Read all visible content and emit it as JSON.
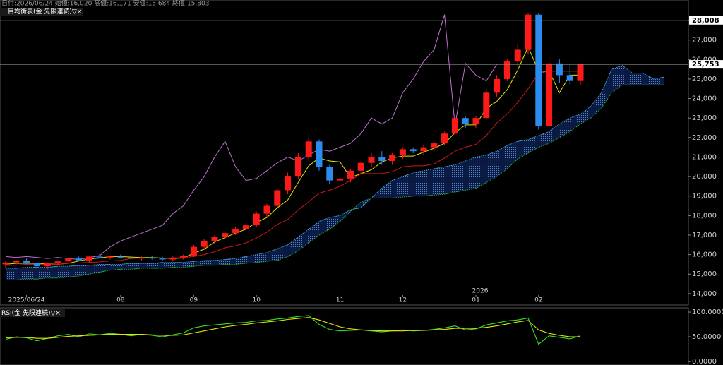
{
  "chart_data": [
    {
      "type": "candlestick",
      "subtitle": "日付:2026/06/24 始値:16,020 高値:16,171 安値:15,684 終値:15,803",
      "title": "一目均衡表(金 先限連続)▽×",
      "annotation": "2026",
      "categories": [
        null,
        null,
        "2025/06/24",
        null,
        null,
        null,
        null,
        null,
        null,
        null,
        null,
        "08",
        null,
        null,
        null,
        null,
        null,
        null,
        "09",
        null,
        null,
        null,
        null,
        null,
        "10",
        null,
        null,
        null,
        null,
        null,
        null,
        null,
        "11",
        null,
        null,
        null,
        null,
        null,
        "12",
        null,
        null,
        null,
        null,
        null,
        null,
        "01",
        null,
        null,
        null,
        null,
        null,
        "02",
        null,
        null,
        null,
        null,
        null,
        null,
        null,
        null,
        null,
        null,
        null,
        null
      ],
      "open": [
        15500,
        15600,
        15700,
        15550,
        15400,
        15550,
        15650,
        15800,
        15700,
        15900,
        15850,
        15900,
        15850,
        15800,
        15850,
        15800,
        15750,
        15850,
        15950,
        16400,
        16700,
        16900,
        17100,
        17300,
        17500,
        18100,
        18500,
        19300,
        20000,
        21000,
        21800,
        20500,
        19800,
        19900,
        20300,
        20700,
        21000,
        20800,
        21100,
        21400,
        21300,
        21500,
        21700,
        22200,
        23000,
        22700,
        23000,
        24300,
        25000,
        25900,
        26500,
        28300,
        22600,
        25800,
        25200,
        24900,
        null,
        null,
        null,
        null,
        null,
        null,
        null,
        null
      ],
      "high": [
        15700,
        15750,
        15800,
        15650,
        15600,
        15700,
        15850,
        15900,
        15950,
        16050,
        15950,
        16000,
        15950,
        15900,
        15950,
        15900,
        15900,
        16000,
        16500,
        16800,
        17000,
        17200,
        17400,
        17600,
        18200,
        18600,
        19400,
        20200,
        21200,
        22000,
        21900,
        20600,
        20100,
        20400,
        20800,
        21200,
        21300,
        21200,
        21500,
        21500,
        21600,
        21800,
        22300,
        23200,
        23100,
        23100,
        24500,
        25200,
        26000,
        26800,
        28400,
        28400,
        26200,
        26000,
        25700,
        25800,
        null,
        null,
        null,
        null,
        null,
        null,
        null,
        null
      ],
      "low": [
        15300,
        15450,
        15500,
        15300,
        15250,
        15450,
        15550,
        15650,
        15600,
        15800,
        15750,
        15800,
        15750,
        15700,
        15750,
        15700,
        15650,
        15750,
        15900,
        16300,
        16550,
        16800,
        17000,
        17100,
        17400,
        17900,
        18400,
        19100,
        19900,
        20800,
        20300,
        19600,
        19500,
        19700,
        20100,
        20500,
        20600,
        20600,
        20900,
        21200,
        21100,
        21300,
        21600,
        22100,
        22500,
        22500,
        22900,
        24100,
        24900,
        25700,
        26300,
        22400,
        22500,
        24800,
        24700,
        24700,
        null,
        null,
        null,
        null,
        null,
        null,
        null,
        null
      ],
      "close": [
        15600,
        15700,
        15550,
        15400,
        15550,
        15650,
        15800,
        15700,
        15900,
        15850,
        15900,
        15850,
        15800,
        15850,
        15800,
        15750,
        15850,
        15950,
        16400,
        16700,
        16900,
        17100,
        17300,
        17500,
        18100,
        18500,
        19300,
        20000,
        21000,
        21800,
        20500,
        19800,
        19900,
        20300,
        20700,
        21000,
        20800,
        21100,
        21400,
        21300,
        21500,
        21700,
        22200,
        23000,
        22700,
        23000,
        24300,
        25000,
        25900,
        26500,
        28300,
        22600,
        25800,
        25200,
        24900,
        25753,
        null,
        null,
        null,
        null,
        null,
        null,
        null,
        null
      ],
      "up_color": "#ff1a1a",
      "down_color": "#2b8cf0",
      "cloud_color": "#1a3470",
      "series": [
        {
          "color": "#e6e600",
          "values": [
            15500,
            15550,
            15550,
            15550,
            15525,
            15500,
            15550,
            15675,
            15775,
            15825,
            15900,
            15900,
            15875,
            15850,
            15850,
            15825,
            15800,
            15825,
            16075,
            16275,
            16650,
            16875,
            17100,
            17300,
            17650,
            17900,
            18400,
            18800,
            19700,
            20550,
            20950,
            20800,
            20750,
            19950,
            20150,
            20350,
            20750,
            20950,
            21050,
            21050,
            21250,
            21450,
            21700,
            22250,
            22650,
            22650,
            23500,
            23850,
            24450,
            25450,
            26650,
            25400,
            25400,
            24300,
            25200,
            25200,
            null,
            null,
            null,
            null,
            null,
            null,
            null,
            null
          ]
        },
        {
          "color": "#c81818",
          "values": [
            15450,
            15450,
            15500,
            15500,
            15500,
            15500,
            15550,
            15575,
            15600,
            15625,
            15675,
            15700,
            15800,
            15825,
            15825,
            15825,
            15825,
            15850,
            15900,
            16000,
            16150,
            16350,
            16450,
            16600,
            16850,
            17150,
            17550,
            17800,
            18300,
            18700,
            19150,
            19300,
            19500,
            19800,
            20150,
            20150,
            20150,
            20250,
            20500,
            20550,
            20550,
            20650,
            20950,
            21300,
            21500,
            21650,
            22100,
            22750,
            23200,
            23800,
            24500,
            25300,
            25400,
            25400,
            25400,
            25400,
            null,
            null,
            null,
            null,
            null,
            null,
            null,
            null
          ]
        },
        {
          "color": "#c070d0",
          "values": [
            15900,
            15850,
            15900,
            15850,
            15800,
            15850,
            15800,
            15750,
            15850,
            15950,
            16400,
            16700,
            16900,
            17100,
            17300,
            17500,
            18100,
            18500,
            19300,
            20000,
            21000,
            21800,
            20500,
            19800,
            19900,
            20300,
            20700,
            21000,
            20800,
            21100,
            21400,
            21300,
            21500,
            21700,
            22200,
            23000,
            22700,
            23000,
            24300,
            25000,
            25900,
            26500,
            28300,
            22600,
            25800,
            25200,
            24900,
            25753,
            null,
            null,
            null,
            null,
            null,
            null,
            null,
            null,
            null,
            null,
            null,
            null,
            null,
            null,
            null,
            null
          ]
        },
        {
          "color": "#3fa6d8",
          "values": [
            15300,
            15300,
            15350,
            15350,
            15350,
            15400,
            15400,
            15450,
            15450,
            15500,
            15500,
            15500,
            15550,
            15550,
            15550,
            15600,
            15600,
            15600,
            15650,
            15700,
            15700,
            15750,
            15800,
            15900,
            16000,
            16100,
            16300,
            16500,
            16900,
            17300,
            17700,
            17900,
            18000,
            18300,
            18400,
            18900,
            19400,
            19800,
            20000,
            20200,
            20300,
            20400,
            20500,
            20600,
            20800,
            21000,
            21100,
            21300,
            21600,
            21800,
            21900,
            22100,
            22300,
            22700,
            23000,
            23200,
            23600,
            24300,
            25500,
            25700,
            25300,
            25300,
            25000,
            25100
          ]
        },
        {
          "color": "#22b044",
          "values": [
            14700,
            14700,
            14750,
            14750,
            14800,
            14800,
            14850,
            14900,
            15000,
            15100,
            15200,
            15250,
            15250,
            15300,
            15300,
            15300,
            15350,
            15350,
            15400,
            15450,
            15450,
            15500,
            15500,
            15550,
            15600,
            15650,
            15700,
            15900,
            16200,
            16600,
            17000,
            17300,
            17700,
            18200,
            18700,
            18900,
            18900,
            18900,
            18950,
            19000,
            19000,
            19050,
            19100,
            19200,
            19300,
            19400,
            19700,
            20000,
            20400,
            20900,
            21200,
            21500,
            21700,
            22000,
            22300,
            22700,
            23000,
            23500,
            24300,
            24700,
            24700,
            24700,
            24700,
            24700
          ]
        }
      ],
      "ylim": [
        13670,
        29050
      ],
      "yticks": [
        {
          "value": 14000,
          "label": "14,000"
        },
        {
          "value": 15000,
          "label": "15,000"
        },
        {
          "value": 16000,
          "label": "16,000"
        },
        {
          "value": 17000,
          "label": "17,000"
        },
        {
          "value": 18000,
          "label": "18,000"
        },
        {
          "value": 19000,
          "label": "19,000"
        },
        {
          "value": 20000,
          "label": "20,000"
        },
        {
          "value": 21000,
          "label": "21,000"
        },
        {
          "value": 22000,
          "label": "22,000"
        },
        {
          "value": 23000,
          "label": "23,000"
        },
        {
          "value": 24000,
          "label": "24,000"
        },
        {
          "value": 25000,
          "label": "25,000"
        },
        {
          "value": 26000,
          "label": "26,000"
        },
        {
          "value": 27000,
          "label": "27,000"
        },
        {
          "value": 28000,
          "label": "28,000"
        }
      ],
      "reference_lines": [
        {
          "value": 28008,
          "label": "28,008"
        },
        {
          "value": 25753,
          "label": "25,753"
        }
      ]
    },
    {
      "type": "line",
      "title": "RSI(金 先限連続)▽×",
      "series": [
        {
          "color": "#2ee02e",
          "values": [
            45,
            50,
            48,
            42,
            47,
            52,
            55,
            50,
            56,
            54,
            57,
            55,
            52,
            55,
            53,
            50,
            54,
            58,
            68,
            72,
            74,
            76,
            78,
            79,
            82,
            83,
            86,
            88,
            91,
            93,
            75,
            65,
            62,
            63,
            64,
            62,
            60,
            62,
            64,
            62,
            63,
            65,
            68,
            72,
            64,
            66,
            74,
            78,
            82,
            84,
            88,
            35,
            52,
            49,
            46,
            52,
            null,
            null,
            null,
            null,
            null,
            null,
            null,
            null
          ]
        },
        {
          "color": "#e6e600",
          "values": [
            48,
            49,
            49,
            47,
            47,
            49,
            51,
            52,
            53,
            54,
            55,
            55,
            55,
            55,
            54,
            53,
            53,
            54,
            58,
            62,
            66,
            70,
            73,
            75,
            78,
            80,
            82,
            85,
            87,
            89,
            84,
            77,
            70,
            66,
            64,
            63,
            62,
            62,
            62,
            63,
            63,
            64,
            65,
            67,
            67,
            67,
            69,
            72,
            76,
            80,
            83,
            64,
            57,
            53,
            50,
            50,
            null,
            null,
            null,
            null,
            null,
            null,
            null,
            null
          ]
        }
      ],
      "ylim": [
        -7,
        108.6
      ],
      "yticks": [
        {
          "value": 100,
          "label": "100.0000"
        },
        {
          "value": 50,
          "label": "50.0000"
        },
        {
          "value": 0,
          "label": "0.0000"
        }
      ]
    }
  ]
}
